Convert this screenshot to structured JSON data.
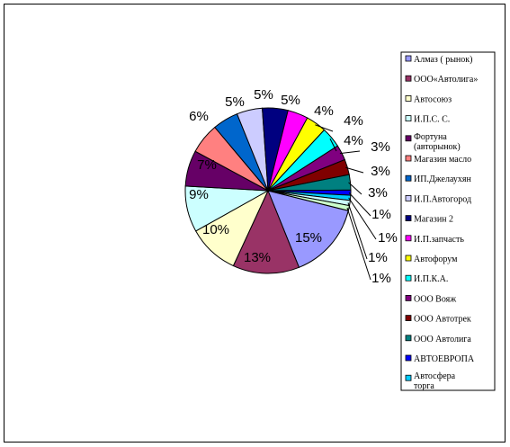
{
  "chart_data": {
    "type": "pie",
    "title": "",
    "legend_position": "right",
    "slices": [
      {
        "label": "Алмаз ( рынок)",
        "value": 15,
        "value_label": "15%",
        "color": "#9999ff"
      },
      {
        "label": "ООО«Автолига»",
        "value": 13,
        "value_label": "13%",
        "color": "#993366"
      },
      {
        "label": "Автосоюз",
        "value": 10,
        "value_label": "10%",
        "color": "#ffffcc"
      },
      {
        "label": "И.П.С. С.",
        "value": 9,
        "value_label": "9%",
        "color": "#ccffff"
      },
      {
        "label": "Фортуна (авторынок)",
        "value": 7,
        "value_label": "7%",
        "color": "#660066"
      },
      {
        "label": "Магазин масло",
        "value": 6,
        "value_label": "6%",
        "color": "#ff8080"
      },
      {
        "label": "ИП.Джелаухян",
        "value": 5,
        "value_label": "5%",
        "color": "#0066cc"
      },
      {
        "label": "И.П.Автогород",
        "value": 5,
        "value_label": "5%",
        "color": "#ccccff"
      },
      {
        "label": "Магазин 2",
        "value": 5,
        "value_label": "5%",
        "color": "#000080"
      },
      {
        "label": "И.П.запчасть",
        "value": 4,
        "value_label": "4%",
        "color": "#ff00ff"
      },
      {
        "label": "Автофорум",
        "value": 4,
        "value_label": "4%",
        "color": "#ffff00"
      },
      {
        "label": " И.П.К.А.",
        "value": 4,
        "value_label": "4%",
        "color": "#00ffff"
      },
      {
        "label": "ООО Вояж",
        "value": 3,
        "value_label": "3%",
        "color": "#800080"
      },
      {
        "label": "ООО Автотрек",
        "value": 3,
        "value_label": "3%",
        "color": "#800000"
      },
      {
        "label": "ООО Автолига",
        "value": 3,
        "value_label": "3%",
        "color": "#008080"
      },
      {
        "label": "АВТОЕВРОПА",
        "value": 1,
        "value_label": "1%",
        "color": "#0000ff"
      },
      {
        "label": "Автосфера торга",
        "value": 1,
        "value_label": "1%",
        "color": "#00ccff"
      },
      {
        "label": "",
        "value": 1,
        "value_label": "1%",
        "color": "#ccffff"
      },
      {
        "label": "",
        "value": 1,
        "value_label": "1%",
        "color": "#ccffcc"
      }
    ]
  }
}
